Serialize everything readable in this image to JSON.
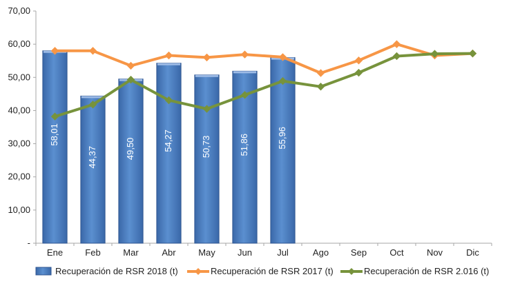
{
  "chart_data": {
    "type": "bar",
    "categories": [
      "Ene",
      "Feb",
      "Mar",
      "Abr",
      "May",
      "Jun",
      "Jul",
      "Ago",
      "Sep",
      "Oct",
      "Nov",
      "Dic"
    ],
    "ylim": [
      0,
      70
    ],
    "yticks": [
      0,
      10,
      20,
      30,
      40,
      50,
      60,
      70
    ],
    "ytick_labels": [
      "-",
      "10,00",
      "20,00",
      "30,00",
      "40,00",
      "50,00",
      "60,00",
      "70,00"
    ],
    "gridlines": false,
    "legend_position": "bottom",
    "series": [
      {
        "name": "Recuperación de RSR 2018 (t)",
        "kind": "bar",
        "color": "#4f81bd",
        "values": [
          58.01,
          44.37,
          49.5,
          54.27,
          50.73,
          51.86,
          55.96,
          null,
          null,
          null,
          null,
          null
        ],
        "labels": [
          "58,01",
          "44,37",
          "49,50",
          "54,27",
          "50,73",
          "51,86",
          "55,96",
          null,
          null,
          null,
          null,
          null
        ]
      },
      {
        "name": "Recuperación de RSR 2017 (t)",
        "kind": "line",
        "color": "#f79646",
        "values": [
          58.0,
          58.0,
          53.5,
          56.6,
          56.0,
          56.9,
          56.1,
          51.3,
          55.1,
          60.0,
          56.6,
          57.2
        ]
      },
      {
        "name": "Recuperación de RSR 2.016 (t)",
        "kind": "line",
        "color": "#77933c",
        "values": [
          38.2,
          41.8,
          49.3,
          43.1,
          40.5,
          44.7,
          48.9,
          47.2,
          51.4,
          56.4,
          57.1,
          57.2
        ]
      }
    ]
  }
}
